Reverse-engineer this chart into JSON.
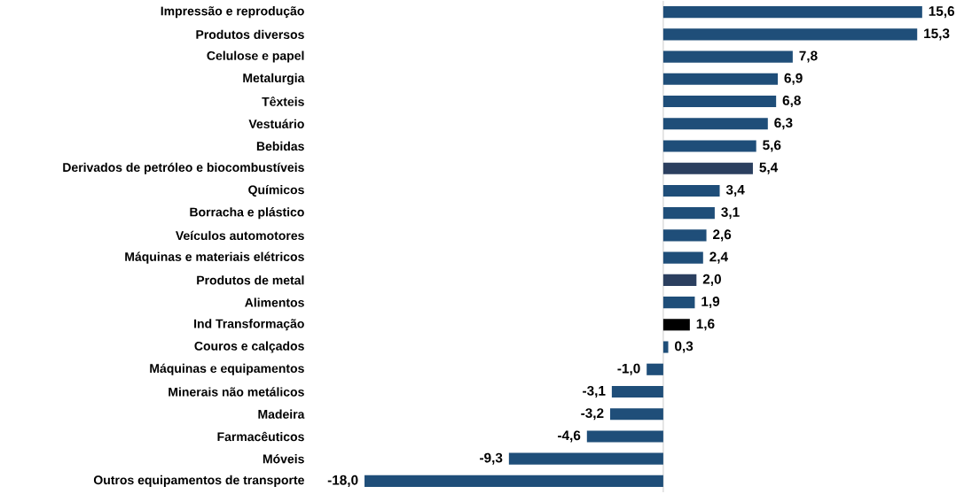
{
  "chart_data": {
    "type": "bar",
    "orientation": "horizontal",
    "categories": [
      "Impressão e reprodução",
      "Produtos diversos",
      "Celulose e papel",
      "Metalurgia",
      "Têxteis",
      "Vestuário",
      "Bebidas",
      "Derivados de petróleo e biocombustíveis",
      "Químicos",
      "Borracha e plástico",
      "Veículos automotores",
      "Máquinas e materiais elétricos",
      "Produtos de metal",
      "Alimentos",
      "Ind Transformação",
      "Couros e calçados",
      "Máquinas e equipamentos",
      "Minerais não metálicos",
      "Madeira",
      "Farmacêuticos",
      "Móveis",
      "Outros equipamentos de transporte"
    ],
    "values": [
      15.6,
      15.3,
      7.8,
      6.9,
      6.8,
      6.3,
      5.6,
      5.4,
      3.4,
      3.1,
      2.6,
      2.4,
      2.0,
      1.9,
      1.6,
      0.3,
      -1.0,
      -3.1,
      -3.2,
      -4.6,
      -9.3,
      -18.0
    ],
    "value_labels": [
      "15,6",
      "15,3",
      "7,8",
      "6,9",
      "6,8",
      "6,3",
      "5,6",
      "5,4",
      "3,4",
      "3,1",
      "2,6",
      "2,4",
      "2,0",
      "1,9",
      "1,6",
      "0,3",
      "-1,0",
      "-3,1",
      "-3,2",
      "-4,6",
      "-9,3",
      "-18,0"
    ],
    "colors": [
      "#1f4e79",
      "#1f4e79",
      "#1f4e79",
      "#1f4e79",
      "#1f4e79",
      "#1f4e79",
      "#1f4e79",
      "#2b3f5f",
      "#1f4e79",
      "#1f4e79",
      "#1f4e79",
      "#1f4e79",
      "#2b3f5f",
      "#1f4e79",
      "#000000",
      "#1f4e79",
      "#1f4e79",
      "#1f4e79",
      "#1f4e79",
      "#1f4e79",
      "#1f4e79",
      "#1f4e79"
    ]
  }
}
